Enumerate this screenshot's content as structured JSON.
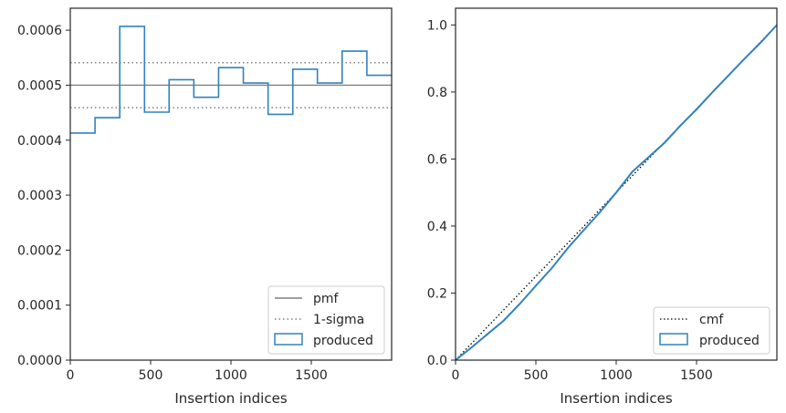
{
  "chart_data": [
    {
      "type": "histogram",
      "xlabel": "Insertion indices",
      "ylabel": "",
      "xlim": [
        0,
        2000
      ],
      "ylim": [
        0,
        0.00064
      ],
      "xticks": [
        "0",
        "500",
        "1000",
        "1500"
      ],
      "yticks": [
        "0.0000",
        "0.0001",
        "0.0002",
        "0.0003",
        "0.0004",
        "0.0005",
        "0.0006"
      ],
      "bin_edges": [
        0,
        154,
        308,
        462,
        615,
        769,
        923,
        1077,
        1231,
        1385,
        1538,
        1692,
        1846,
        2000
      ],
      "series": [
        {
          "name": "produced",
          "style": "step",
          "color": "#3182bd",
          "values": [
            0.000413,
            0.000441,
            0.000607,
            0.000451,
            0.00051,
            0.000478,
            0.000532,
            0.000504,
            0.000447,
            0.000529,
            0.000504,
            0.000562,
            0.000518
          ]
        },
        {
          "name": "pmf",
          "style": "hline",
          "color": "#808080",
          "value": 0.0005
        },
        {
          "name": "1-sigma",
          "style": "hline-dotted",
          "color": "#808080",
          "values": [
            0.000541,
            0.000459
          ]
        }
      ],
      "legend": {
        "position": "bottom-right",
        "entries": [
          "pmf",
          "1-sigma",
          "produced"
        ]
      }
    },
    {
      "type": "line",
      "xlabel": "Insertion indices",
      "ylabel": "",
      "xlim": [
        0,
        2000
      ],
      "ylim": [
        0,
        1.05
      ],
      "xticks": [
        "0",
        "500",
        "1000",
        "1500"
      ],
      "yticks": [
        "0.0",
        "0.2",
        "0.4",
        "0.6",
        "0.8",
        "1.0"
      ],
      "series": [
        {
          "name": "cmf",
          "style": "dotted",
          "color": "#000000",
          "x": [
            0,
            2000
          ],
          "y": [
            0,
            1.0
          ]
        },
        {
          "name": "produced",
          "style": "step",
          "color": "#3182bd",
          "x": [
            0,
            100,
            200,
            300,
            400,
            500,
            600,
            700,
            800,
            900,
            1000,
            1100,
            1200,
            1300,
            1400,
            1500,
            1600,
            1700,
            1800,
            1900,
            2000
          ],
          "y": [
            0,
            0.038,
            0.078,
            0.118,
            0.168,
            0.222,
            0.275,
            0.335,
            0.389,
            0.442,
            0.5,
            0.562,
            0.605,
            0.648,
            0.7,
            0.748,
            0.8,
            0.85,
            0.9,
            0.948,
            1.0
          ]
        }
      ],
      "legend": {
        "position": "bottom-right",
        "entries": [
          "cmf",
          "produced"
        ]
      }
    }
  ]
}
